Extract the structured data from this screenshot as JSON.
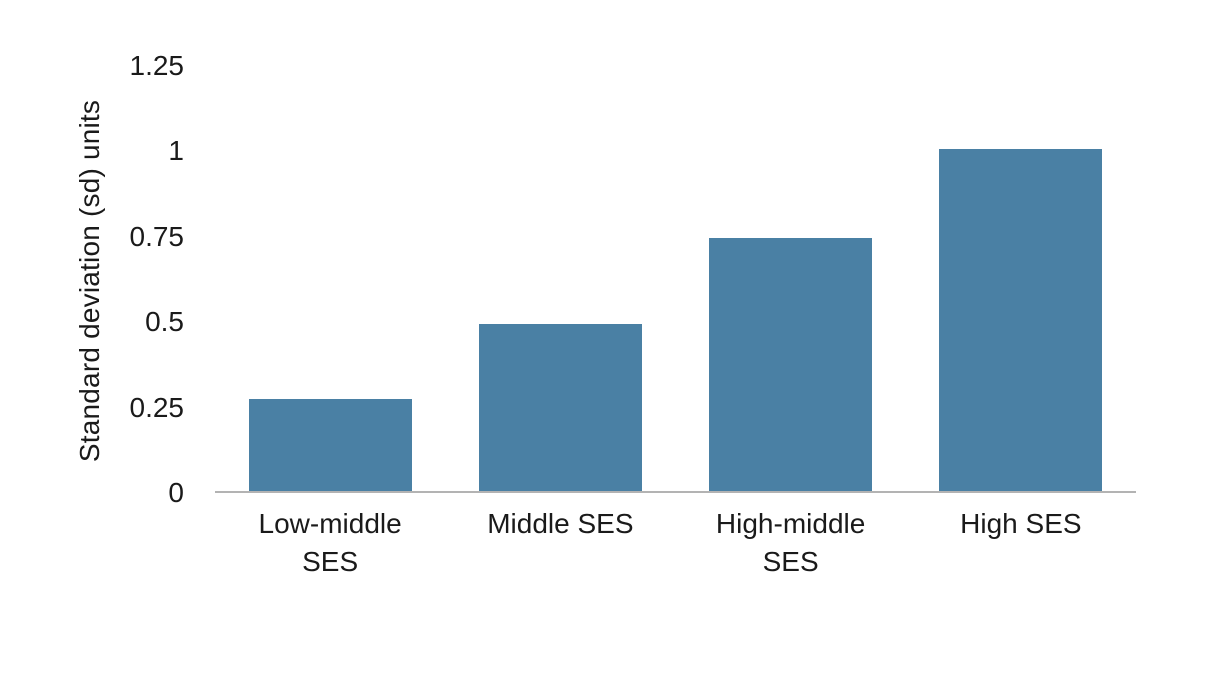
{
  "chart_data": {
    "type": "bar",
    "title": "",
    "xlabel": "",
    "ylabel": "Standard deviation (sd) units",
    "categories": [
      "Low-middle SES",
      "Middle SES",
      "High-middle SES",
      "High SES"
    ],
    "values": [
      0.27,
      0.49,
      0.74,
      1
    ],
    "ylim": [
      0,
      1.25
    ],
    "yticks": [
      0,
      0.25,
      0.5,
      0.75,
      1,
      1.25
    ],
    "ytick_labels": [
      "0",
      "0.25",
      "0.5",
      "0.75",
      "1",
      "1.25"
    ],
    "grid": false,
    "legend_position": "none",
    "colors": {
      "bar": "#4a80a4",
      "axis_line": "#b3b3b3",
      "text": "#1a1a1a",
      "background": "#ffffff"
    }
  }
}
